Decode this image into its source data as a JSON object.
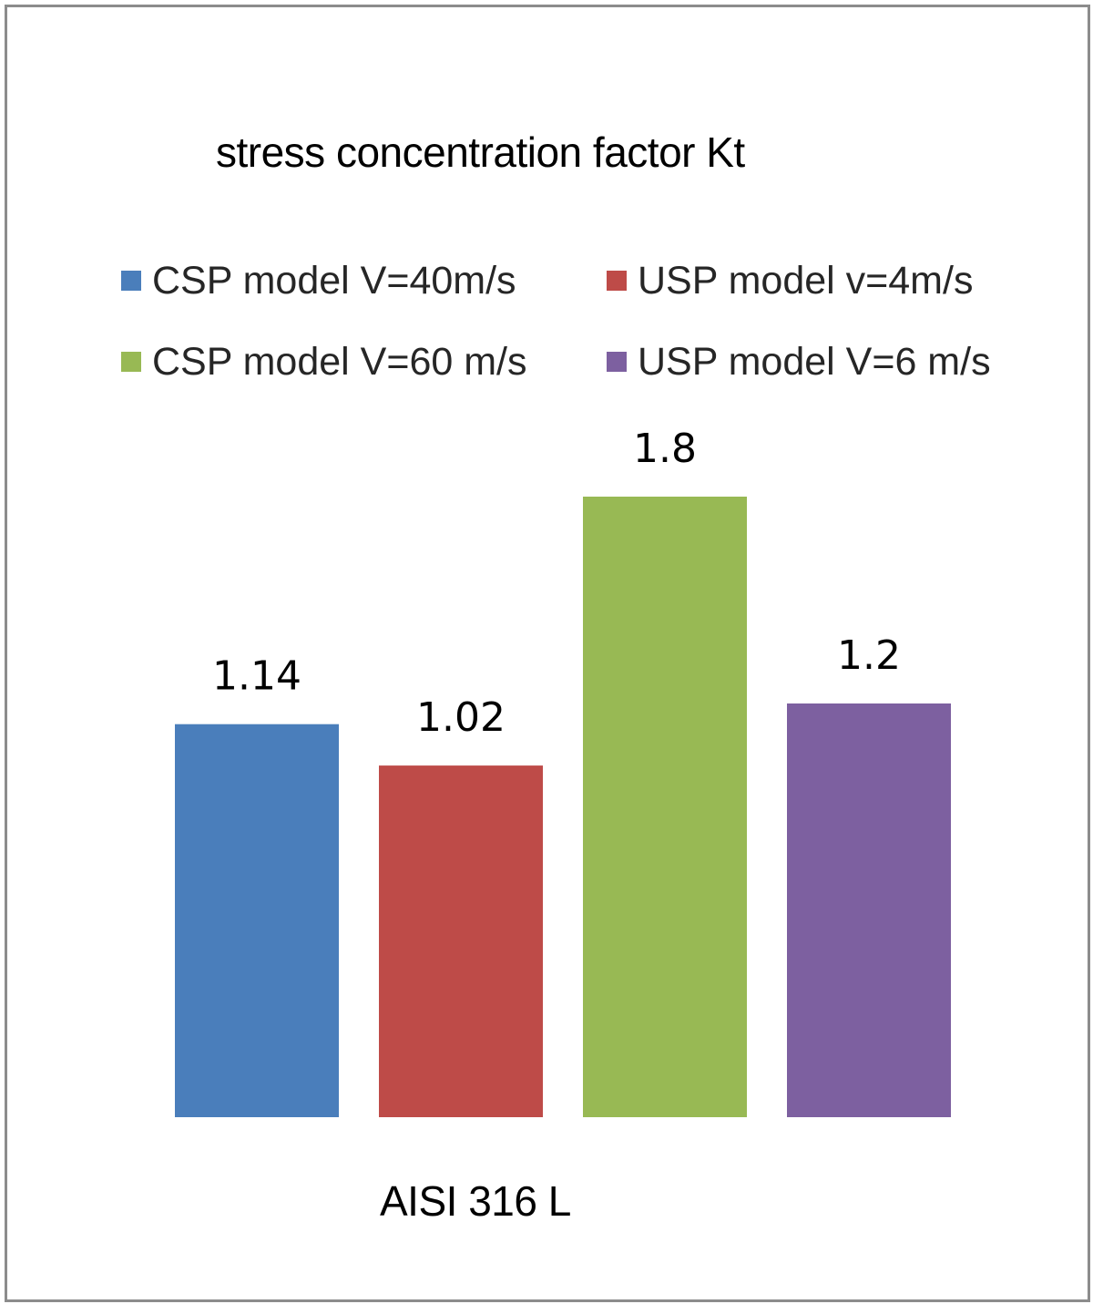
{
  "chart_data": {
    "type": "bar",
    "title": "stress concentration factor Kt",
    "categories": [
      "AISI 316 L"
    ],
    "series": [
      {
        "name": "CSP model V=40m/s",
        "values": [
          1.14
        ],
        "color": "#4a7ebb"
      },
      {
        "name": "USP model v=4m/s",
        "values": [
          1.02
        ],
        "color": "#be4b48"
      },
      {
        "name": "CSP model V=60 m/s",
        "values": [
          1.8
        ],
        "color": "#98b954"
      },
      {
        "name": "USP model V=6 m/s",
        "values": [
          1.2
        ],
        "color": "#7d60a0"
      }
    ],
    "data_labels": [
      "1.14",
      "1.02",
      "1.8",
      "1.2"
    ],
    "xlabel": "",
    "ylabel": "",
    "ylim": [
      0,
      1.8
    ],
    "grid": false,
    "y_axis_visible": false,
    "legend_position": "top"
  }
}
